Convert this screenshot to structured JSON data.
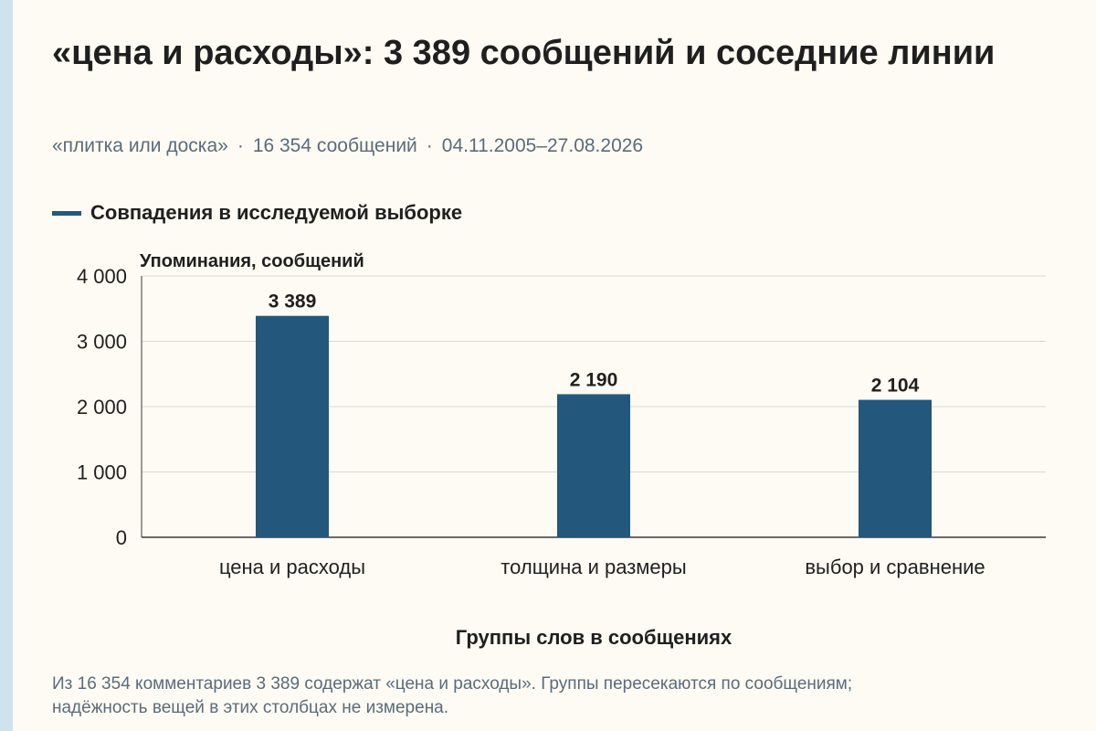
{
  "title": "«цена и расходы»: 3 389 сообщений и соседние линии",
  "subtitle": {
    "topic": "«плитка или доска»",
    "messages": "16 354 сообщений",
    "period": "04.11.2005–27.08.2026"
  },
  "legend": {
    "label": "Совпадения в исследуемой выборке",
    "color": "#24577c"
  },
  "footnote": "Из 16 354 комментариев 3 389 содержат «цена и расходы». Группы пересекаются по сообщениям; надёжность вещей в этих столбцах не измерена.",
  "chart_data": {
    "type": "bar",
    "categories": [
      "цена и расходы",
      "толщина и размеры",
      "выбор и сравнение"
    ],
    "series": [
      {
        "name": "Совпадения в исследуемой выборке",
        "values": [
          3389,
          2190,
          2104
        ],
        "data_labels": [
          "3 389",
          "2 190",
          "2 104"
        ]
      }
    ],
    "ylabel": "Упоминания, сообщений",
    "xlabel": "Группы слов в сообщениях",
    "ylim": [
      0,
      4000
    ],
    "yticks": [
      0,
      1000,
      2000,
      3000,
      4000
    ],
    "ytick_labels": [
      "0",
      "1 000",
      "2 000",
      "3 000",
      "4 000"
    ],
    "grid": true,
    "legend_position": "top-left",
    "bar_color": "#24577c"
  }
}
